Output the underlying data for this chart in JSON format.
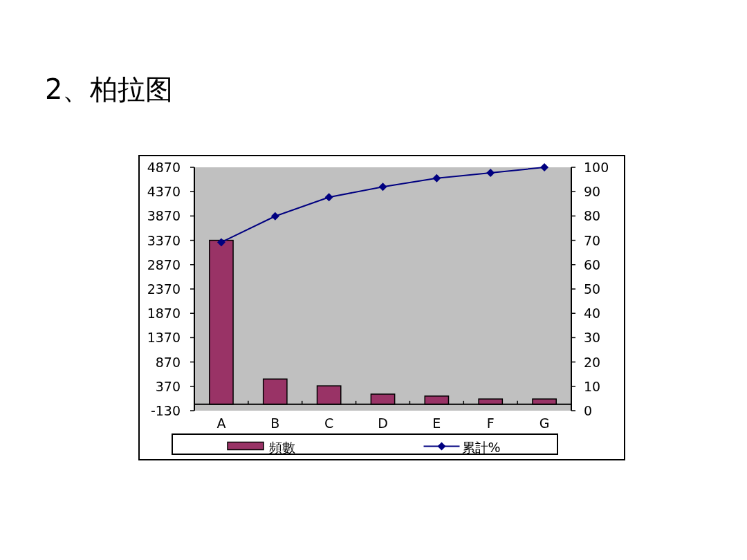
{
  "chart_data": {
    "type": "bar",
    "title": "2、柏拉图",
    "categories": [
      "A",
      "B",
      "C",
      "D",
      "E",
      "F",
      "G"
    ],
    "series": [
      {
        "name": "頻數",
        "color": "#993366",
        "values": [
          3370,
          520,
          380,
          210,
          170,
          110,
          110
        ]
      },
      {
        "name": "累計%",
        "type": "line",
        "axis": "y2",
        "color": "#000080",
        "marker": "diamond",
        "values": [
          69.2,
          79.9,
          87.7,
          92.0,
          95.5,
          97.7,
          100
        ]
      }
    ],
    "ylim": [
      -130,
      4870
    ],
    "yticks": [
      -130,
      370,
      870,
      1370,
      1870,
      2370,
      2870,
      3370,
      3870,
      4370,
      4870
    ],
    "y2lim": [
      0,
      100
    ],
    "y2ticks": [
      0,
      10,
      20,
      30,
      40,
      50,
      60,
      70,
      80,
      90,
      100
    ],
    "legend": "bottom"
  }
}
